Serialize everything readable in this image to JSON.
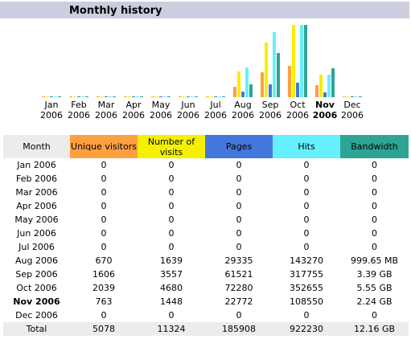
{
  "title": "Monthly history",
  "colors": {
    "unique": "#ffa040",
    "visits": "#f4f000",
    "pages": "#4477dd",
    "hits": "#66f0ff",
    "bandwidth": "#2ea495",
    "header_bg": "#cccdde"
  },
  "chart_data": {
    "type": "bar",
    "categories": [
      "Jan 2006",
      "Feb 2006",
      "Mar 2006",
      "Apr 2006",
      "May 2006",
      "Jun 2006",
      "Jul 2006",
      "Aug 2006",
      "Sep 2006",
      "Oct 2006",
      "Nov 2006",
      "Dec 2006"
    ],
    "x_labels": [
      {
        "m": "Jan",
        "y": "2006"
      },
      {
        "m": "Feb",
        "y": "2006"
      },
      {
        "m": "Mar",
        "y": "2006"
      },
      {
        "m": "Apr",
        "y": "2006"
      },
      {
        "m": "May",
        "y": "2006"
      },
      {
        "m": "Jun",
        "y": "2006"
      },
      {
        "m": "Jul",
        "y": "2006"
      },
      {
        "m": "Aug",
        "y": "2006"
      },
      {
        "m": "Sep",
        "y": "2006"
      },
      {
        "m": "Oct",
        "y": "2006"
      },
      {
        "m": "Nov",
        "y": "2006"
      },
      {
        "m": "Dec",
        "y": "2006"
      }
    ],
    "current_index": 10,
    "series": [
      {
        "name": "Unique visitors",
        "values": [
          0,
          0,
          0,
          0,
          0,
          0,
          0,
          670,
          1606,
          2039,
          763,
          0
        ]
      },
      {
        "name": "Number of visits",
        "values": [
          0,
          0,
          0,
          0,
          0,
          0,
          0,
          1639,
          3557,
          4680,
          1448,
          0
        ]
      },
      {
        "name": "Pages",
        "values": [
          0,
          0,
          0,
          0,
          0,
          0,
          0,
          29335,
          61521,
          72280,
          22772,
          0
        ]
      },
      {
        "name": "Hits",
        "values": [
          0,
          0,
          0,
          0,
          0,
          0,
          0,
          143270,
          317755,
          352655,
          108550,
          0
        ]
      },
      {
        "name": "Bandwidth",
        "values": [
          0,
          0,
          0,
          0,
          0,
          0,
          0,
          999.65,
          3471.36,
          5683.2,
          2293.76,
          0
        ]
      }
    ]
  },
  "table": {
    "headers": [
      "Month",
      "Unique visitors",
      "Number of visits",
      "Pages",
      "Hits",
      "Bandwidth"
    ],
    "rows": [
      {
        "month": "Jan 2006",
        "unique": "0",
        "visits": "0",
        "pages": "0",
        "hits": "0",
        "bandwidth": "0"
      },
      {
        "month": "Feb 2006",
        "unique": "0",
        "visits": "0",
        "pages": "0",
        "hits": "0",
        "bandwidth": "0"
      },
      {
        "month": "Mar 2006",
        "unique": "0",
        "visits": "0",
        "pages": "0",
        "hits": "0",
        "bandwidth": "0"
      },
      {
        "month": "Apr 2006",
        "unique": "0",
        "visits": "0",
        "pages": "0",
        "hits": "0",
        "bandwidth": "0"
      },
      {
        "month": "May 2006",
        "unique": "0",
        "visits": "0",
        "pages": "0",
        "hits": "0",
        "bandwidth": "0"
      },
      {
        "month": "Jun 2006",
        "unique": "0",
        "visits": "0",
        "pages": "0",
        "hits": "0",
        "bandwidth": "0"
      },
      {
        "month": "Jul 2006",
        "unique": "0",
        "visits": "0",
        "pages": "0",
        "hits": "0",
        "bandwidth": "0"
      },
      {
        "month": "Aug 2006",
        "unique": "670",
        "visits": "1639",
        "pages": "29335",
        "hits": "143270",
        "bandwidth": "999.65 MB"
      },
      {
        "month": "Sep 2006",
        "unique": "1606",
        "visits": "3557",
        "pages": "61521",
        "hits": "317755",
        "bandwidth": "3.39 GB"
      },
      {
        "month": "Oct 2006",
        "unique": "2039",
        "visits": "4680",
        "pages": "72280",
        "hits": "352655",
        "bandwidth": "5.55 GB"
      },
      {
        "month": "Nov 2006",
        "unique": "763",
        "visits": "1448",
        "pages": "22772",
        "hits": "108550",
        "bandwidth": "2.24 GB"
      },
      {
        "month": "Dec 2006",
        "unique": "0",
        "visits": "0",
        "pages": "0",
        "hits": "0",
        "bandwidth": "0"
      }
    ],
    "total": {
      "label": "Total",
      "unique": "5078",
      "visits": "11324",
      "pages": "185908",
      "hits": "922230",
      "bandwidth": "12.16 GB"
    }
  }
}
